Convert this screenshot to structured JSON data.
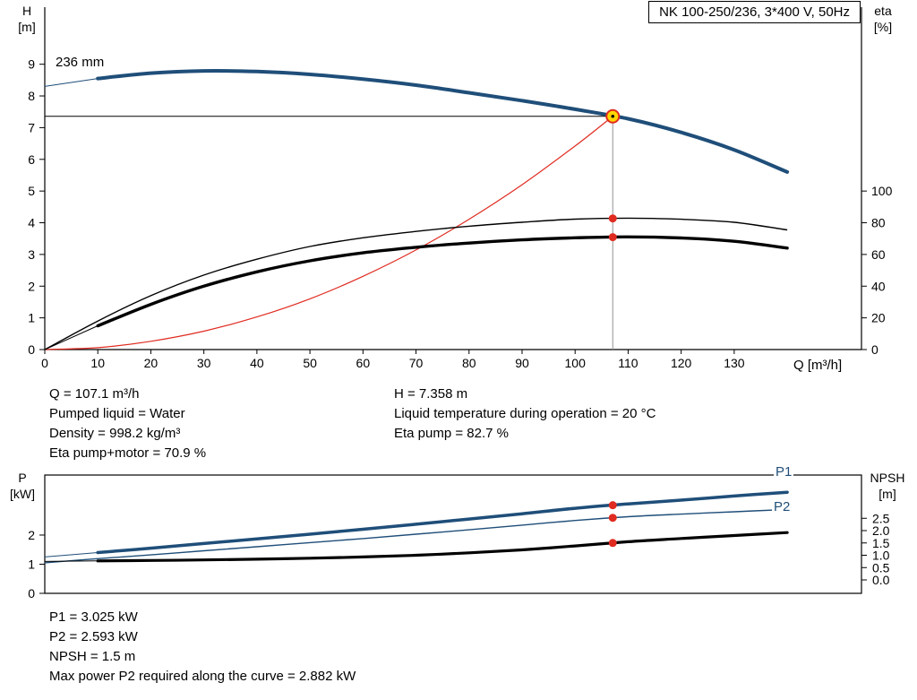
{
  "labels": {
    "title_box": "NK 100-250/236, 3*400 V, 50Hz",
    "impeller": "236 mm",
    "h_axis_line1": "H",
    "h_axis_line2": "[m]",
    "eta_axis_line1": "eta",
    "eta_axis_line2": "[%]",
    "q_axis": "Q [m³/h]",
    "p_axis_line1": "P",
    "p_axis_line2": "[kW]",
    "npsh_axis_line1": "NPSH",
    "npsh_axis_line2": "[m]",
    "p1_curve": "P1",
    "p2_curve": "P2"
  },
  "info_top_left": [
    "Q = 107.1 m³/h",
    "Pumped liquid = Water",
    "Density = 998.2 kg/m³",
    "Eta pump+motor = 70.9 %"
  ],
  "info_top_right": [
    "H = 7.358 m",
    "Liquid temperature during operation = 20 °C",
    "Eta pump = 82.7 %"
  ],
  "info_bottom": [
    "P1 = 3.025 kW",
    "P2 = 2.593 kW",
    "NPSH = 1.5 m",
    "Max power P2 required along the curve = 2.882 kW"
  ],
  "colors": {
    "curve_blue": "#1f4e79",
    "curve_black": "#000000",
    "red": "#e02b20",
    "duty_fill": "#ffd500",
    "grid_gray": "#909090"
  },
  "chart_data": [
    {
      "type": "line",
      "title": "NK 100-250/236, 3*400 V, 50Hz",
      "xlabel": "Q [m³/h]",
      "ylabel_left": "H [m]",
      "ylabel_right": "eta [%]",
      "xlim": [
        0,
        154
      ],
      "ylim_left": [
        0,
        10.8
      ],
      "ylim_right": [
        0,
        216
      ],
      "x_ticks": [
        0,
        10,
        20,
        30,
        40,
        50,
        60,
        70,
        80,
        90,
        100,
        110,
        120,
        130
      ],
      "y_ticks_left": [
        0,
        1,
        2,
        3,
        4,
        5,
        6,
        7,
        8,
        9
      ],
      "y_ticks_right": [
        0,
        20,
        40,
        60,
        80,
        100
      ],
      "x": [
        0,
        10,
        20,
        30,
        40,
        50,
        60,
        70,
        80,
        90,
        100,
        110,
        120,
        130,
        140
      ],
      "series": [
        {
          "name": "head-curve-236mm",
          "axis": "left",
          "color": "#1f4e79",
          "values": [
            8.3,
            8.55,
            8.72,
            8.79,
            8.77,
            8.68,
            8.53,
            8.34,
            8.1,
            7.85,
            7.58,
            7.28,
            6.85,
            6.3,
            5.6
          ]
        },
        {
          "name": "eta-pump",
          "axis": "right",
          "color": "#000000",
          "values": [
            0,
            18,
            34,
            47,
            57,
            65,
            70.5,
            74.5,
            77.8,
            80.3,
            82.3,
            82.9,
            82.2,
            80.3,
            75.5
          ]
        },
        {
          "name": "eta-pump-motor",
          "axis": "right",
          "color": "#000000",
          "values": [
            0,
            15,
            28.5,
            40,
            49,
            56,
            61,
            64.5,
            67.2,
            69.2,
            70.5,
            71.1,
            70.4,
            68.3,
            64
          ]
        }
      ],
      "system_curve": [
        [
          0,
          0
        ],
        [
          10,
          0.06
        ],
        [
          20,
          0.26
        ],
        [
          30,
          0.58
        ],
        [
          40,
          1.03
        ],
        [
          50,
          1.6
        ],
        [
          60,
          2.31
        ],
        [
          70,
          3.14
        ],
        [
          80,
          4.11
        ],
        [
          90,
          5.2
        ],
        [
          100,
          6.42
        ],
        [
          107.1,
          7.358
        ]
      ],
      "duty_point": {
        "q": 107.1,
        "h": 7.358
      },
      "duty_markers_right_axis": [
        82.7,
        70.9
      ],
      "legend_position": "none",
      "grid": false
    },
    {
      "type": "line",
      "title": "",
      "xlabel": "",
      "ylabel_left": "P [kW]",
      "ylabel_right": "NPSH [m]",
      "xlim": [
        0,
        154
      ],
      "ylim_left": [
        0,
        4.06
      ],
      "ylim_right": [
        -0.545,
        4.255
      ],
      "y_ticks_left": [
        0,
        1,
        2
      ],
      "y_ticks_right_values": [
        0,
        0.5,
        1,
        1.5,
        2,
        2.5
      ],
      "y_ticks_right_labels": [
        "0.0",
        "0.5",
        "1.0",
        "1.5",
        "2.0",
        "2.5"
      ],
      "x": [
        0,
        10,
        20,
        30,
        40,
        50,
        60,
        70,
        80,
        90,
        100,
        110,
        120,
        130,
        140
      ],
      "series": [
        {
          "name": "p1-curve",
          "axis": "left",
          "color": "#1f4e79",
          "values": [
            1.25,
            1.4,
            1.55,
            1.71,
            1.87,
            2.03,
            2.2,
            2.37,
            2.55,
            2.73,
            2.92,
            3.07,
            3.2,
            3.34,
            3.47
          ]
        },
        {
          "name": "p2-curve",
          "axis": "left",
          "color": "#1f4e79",
          "values": [
            1.05,
            1.19,
            1.32,
            1.46,
            1.6,
            1.74,
            1.88,
            2.03,
            2.18,
            2.34,
            2.5,
            2.63,
            2.72,
            2.8,
            2.88
          ]
        },
        {
          "name": "npsh-curve",
          "axis": "right",
          "color": "#000000",
          "values": [
            0.75,
            0.77,
            0.79,
            0.81,
            0.84,
            0.88,
            0.93,
            1.0,
            1.1,
            1.22,
            1.38,
            1.55,
            1.68,
            1.8,
            1.92
          ]
        }
      ],
      "duty_markers": [
        {
          "series": 0,
          "q": 107.1,
          "v": 3.025
        },
        {
          "series": 1,
          "q": 107.1,
          "v": 2.593
        },
        {
          "series": 2,
          "q": 107.1,
          "v": 1.5
        }
      ],
      "legend_position": "inline-right",
      "grid": false
    }
  ]
}
